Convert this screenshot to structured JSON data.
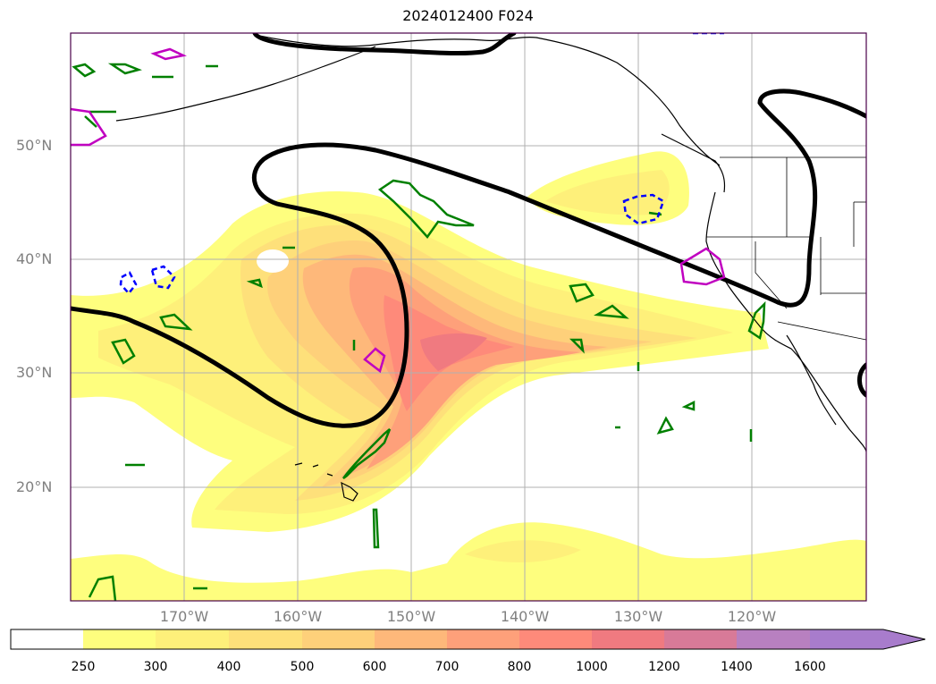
{
  "title": "2024012400 F024",
  "lat_labels": [
    "50°N",
    "40°N",
    "30°N",
    "20°N"
  ],
  "lon_labels": [
    "170°W",
    "160°W",
    "150°W",
    "140°W",
    "130°W",
    "120°W"
  ],
  "colorbar": {
    "ticks": [
      "250",
      "300",
      "400",
      "500",
      "600",
      "700",
      "800",
      "1000",
      "1200",
      "1400",
      "1600"
    ],
    "colors": [
      "#ffffff",
      "#fefe7e",
      "#fef07a",
      "#fee07a",
      "#fed07a",
      "#feb87a",
      "#fea07a",
      "#fe8a7a",
      "#f07a80",
      "#d87a98",
      "#b880c0",
      "#a87ccc",
      "#a87ccc"
    ]
  },
  "map_info": {
    "lon_range": [
      "180°W",
      "110°W"
    ],
    "lat_range": [
      "10°N",
      "60°N"
    ],
    "layers": [
      "filled contour",
      "thick black contour",
      "green contours",
      "magenta contours",
      "blue dashed contours",
      "coastlines",
      "state borders"
    ]
  }
}
